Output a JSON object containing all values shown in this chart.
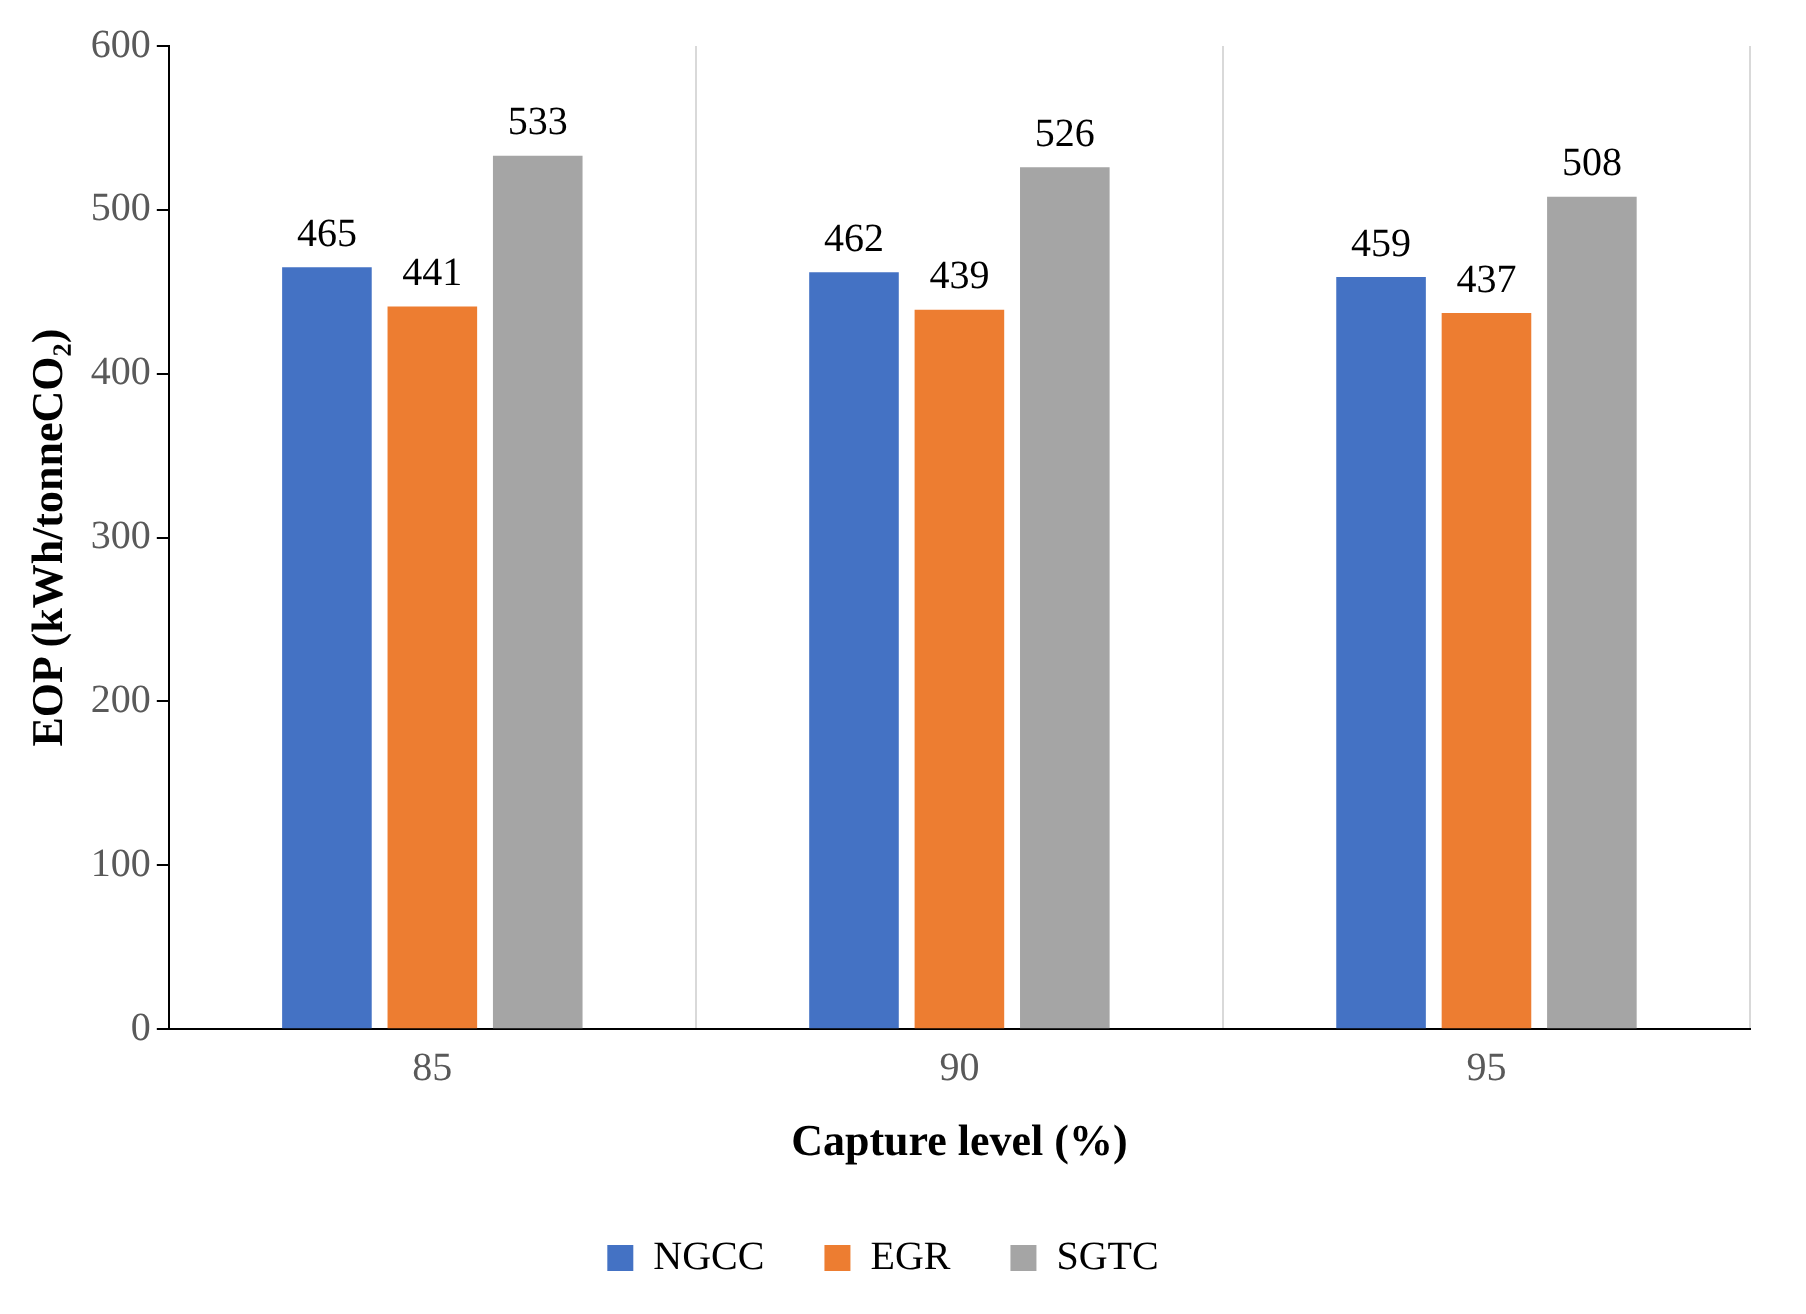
{
  "chart_data": {
    "type": "bar",
    "xlabel": "Capture level (%)",
    "ylabel": "EOP (kWh/tonneCO₂)",
    "categories": [
      "85",
      "90",
      "95"
    ],
    "series": [
      {
        "name": "NGCC",
        "color": "#4472c4",
        "values": [
          465,
          462,
          459
        ]
      },
      {
        "name": "EGR",
        "color": "#ed7d31",
        "values": [
          441,
          439,
          437
        ]
      },
      {
        "name": "SGTC",
        "color": "#a5a5a5",
        "values": [
          533,
          526,
          508
        ]
      }
    ],
    "ylim": [
      0,
      600
    ],
    "yticks": [
      0,
      100,
      200,
      300,
      400,
      500,
      600
    ],
    "grid": "x",
    "legend": "bottom",
    "data_labels": true
  }
}
